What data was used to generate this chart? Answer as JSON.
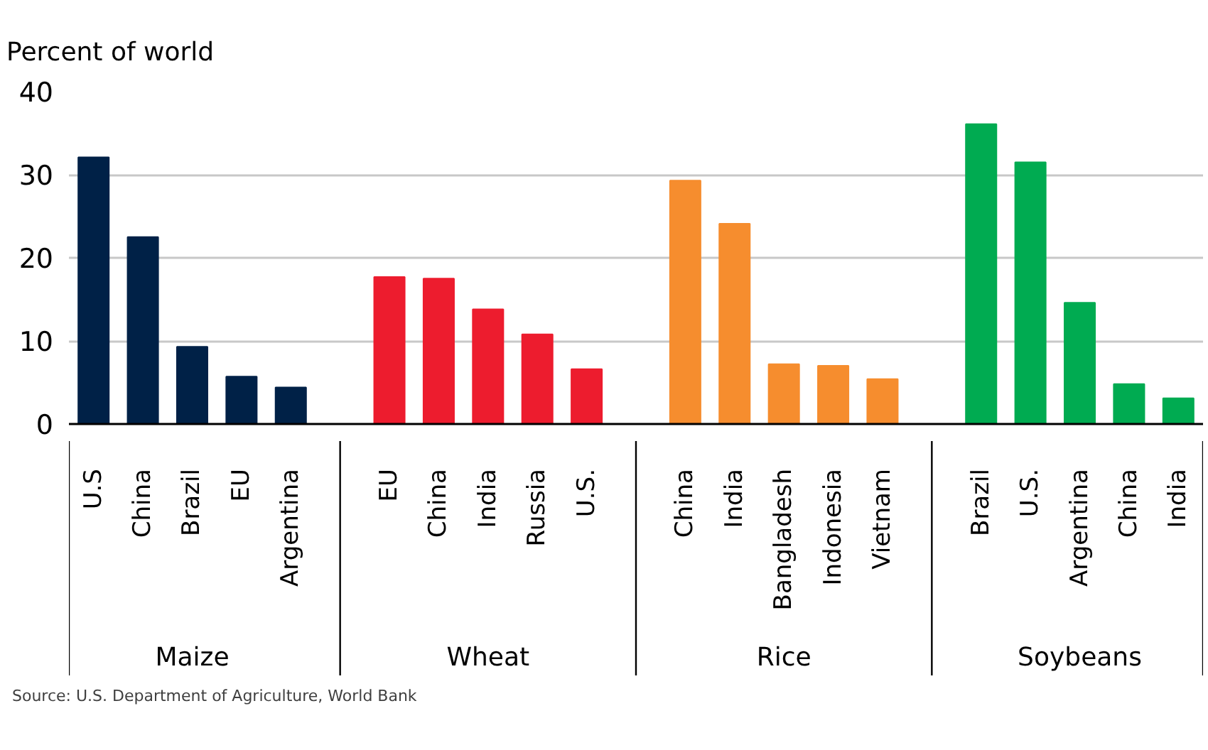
{
  "chart_data": {
    "type": "bar",
    "ylabel": "Percent of world",
    "categories": [
      "U.S",
      "China",
      "Brazil",
      "EU",
      "Argentina",
      "EU",
      "China",
      "India",
      "Russia",
      "U.S.",
      "China",
      "India",
      "Bangladesh",
      "Indonesia",
      "Vietnam",
      "Brazil",
      "U.S.",
      "Argentina",
      "China",
      "India"
    ],
    "series": [
      {
        "color": "#002147",
        "values": [
          32.1,
          22.5,
          9.3,
          5.7,
          4.4,
          null,
          null,
          null,
          null,
          null,
          null,
          null,
          null,
          null,
          null,
          null,
          null,
          null,
          null,
          null
        ]
      },
      {
        "color": "#ed1c2e",
        "values": [
          null,
          null,
          null,
          null,
          null,
          17.7,
          17.5,
          13.8,
          10.8,
          6.6,
          null,
          null,
          null,
          null,
          null,
          null,
          null,
          null,
          null,
          null
        ]
      },
      {
        "color": "#f68d2e",
        "values": [
          null,
          null,
          null,
          null,
          null,
          null,
          null,
          null,
          null,
          null,
          29.3,
          24.1,
          7.2,
          7.0,
          5.4,
          null,
          null,
          null,
          null,
          null
        ]
      },
      {
        "color": "#00ab51",
        "values": [
          null,
          null,
          null,
          null,
          null,
          null,
          null,
          null,
          null,
          null,
          null,
          null,
          null,
          null,
          null,
          36.1,
          31.5,
          14.6,
          4.8,
          3.1
        ]
      }
    ],
    "ylim": [
      0,
      40
    ],
    "yticks": [
      0,
      10,
      20,
      30,
      40
    ],
    "grid": "y",
    "annotations": [
      "Maize",
      "Wheat",
      "Rice",
      "Soybeans",
      "Source: U.S. Department of Agriculture, World Bank"
    ]
  }
}
